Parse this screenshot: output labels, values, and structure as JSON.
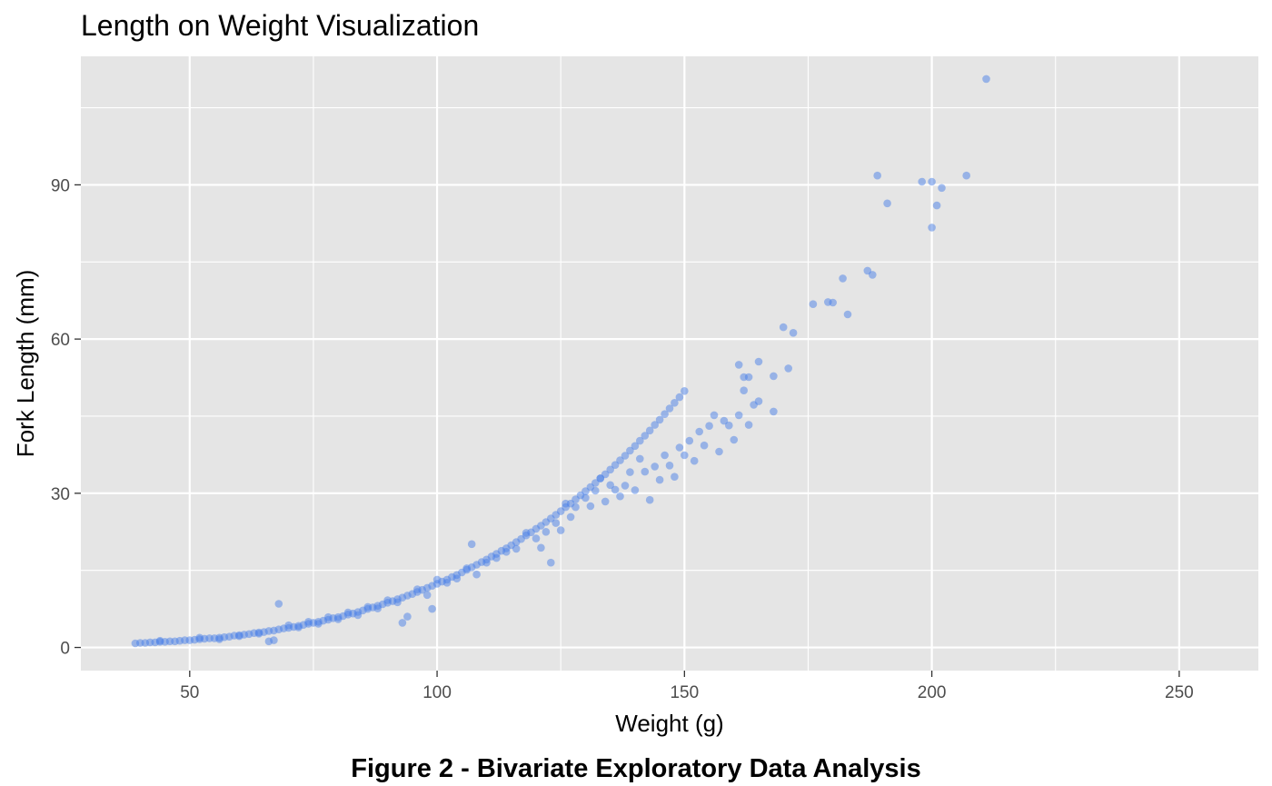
{
  "chart_data": {
    "type": "scatter",
    "title": "Length on Weight Visualization",
    "xlabel": "Weight (g)",
    "ylabel": "Fork Length (mm)",
    "caption": "Figure 2 - Bivariate Exploratory Data Analysis",
    "xlim": [
      28,
      266
    ],
    "ylim": [
      -4.5,
      115
    ],
    "x_ticks": [
      50,
      100,
      150,
      200,
      250
    ],
    "y_ticks": [
      0,
      30,
      60,
      90
    ],
    "x_tick_labels": [
      "50",
      "100",
      "150",
      "200",
      "250"
    ],
    "y_tick_labels": [
      "0",
      "30",
      "60",
      "90"
    ],
    "grid": true,
    "legend": "none",
    "colors": {
      "panel_background": "#e5e5e5",
      "grid_line": "#ffffff",
      "point": "#4a7fe8",
      "tick_label": "#4d4d4d",
      "tick_mark": "#333333"
    },
    "point_alpha": 0.5,
    "series": [
      {
        "points": [
          [
            39,
            0.8
          ],
          [
            40,
            0.9
          ],
          [
            41,
            0.9
          ],
          [
            42,
            1.0
          ],
          [
            43,
            1.0
          ],
          [
            44,
            1.1
          ],
          [
            45,
            1.1
          ],
          [
            46,
            1.2
          ],
          [
            47,
            1.2
          ],
          [
            48,
            1.3
          ],
          [
            49,
            1.4
          ],
          [
            50,
            1.4
          ],
          [
            51,
            1.5
          ],
          [
            52,
            1.6
          ],
          [
            53,
            1.7
          ],
          [
            54,
            1.8
          ],
          [
            55,
            1.8
          ],
          [
            56,
            1.9
          ],
          [
            57,
            2.0
          ],
          [
            58,
            2.1
          ],
          [
            59,
            2.3
          ],
          [
            60,
            2.4
          ],
          [
            61,
            2.5
          ],
          [
            62,
            2.6
          ],
          [
            63,
            2.8
          ],
          [
            64,
            2.9
          ],
          [
            65,
            3.0
          ],
          [
            66,
            3.2
          ],
          [
            67,
            3.3
          ],
          [
            68,
            3.5
          ],
          [
            69,
            3.7
          ],
          [
            70,
            3.8
          ],
          [
            71,
            4.0
          ],
          [
            72,
            4.2
          ],
          [
            73,
            4.4
          ],
          [
            74,
            4.6
          ],
          [
            75,
            4.8
          ],
          [
            76,
            5.0
          ],
          [
            77,
            5.2
          ],
          [
            78,
            5.4
          ],
          [
            79,
            5.7
          ],
          [
            80,
            5.9
          ],
          [
            81,
            6.1
          ],
          [
            82,
            6.4
          ],
          [
            83,
            6.6
          ],
          [
            84,
            6.9
          ],
          [
            85,
            7.2
          ],
          [
            86,
            7.5
          ],
          [
            87,
            7.8
          ],
          [
            88,
            8.1
          ],
          [
            89,
            8.4
          ],
          [
            90,
            8.7
          ],
          [
            91,
            9.0
          ],
          [
            92,
            9.4
          ],
          [
            93,
            9.7
          ],
          [
            94,
            10.1
          ],
          [
            95,
            10.4
          ],
          [
            96,
            10.8
          ],
          [
            97,
            11.2
          ],
          [
            98,
            11.6
          ],
          [
            99,
            12.0
          ],
          [
            100,
            12.4
          ],
          [
            101,
            12.8
          ],
          [
            102,
            13.2
          ],
          [
            103,
            13.7
          ],
          [
            104,
            14.1
          ],
          [
            105,
            14.6
          ],
          [
            106,
            15.1
          ],
          [
            107,
            15.6
          ],
          [
            108,
            16.1
          ],
          [
            109,
            16.6
          ],
          [
            110,
            17.1
          ],
          [
            111,
            17.7
          ],
          [
            112,
            18.2
          ],
          [
            113,
            18.8
          ],
          [
            114,
            19.3
          ],
          [
            115,
            19.9
          ],
          [
            116,
            20.5
          ],
          [
            117,
            21.1
          ],
          [
            118,
            21.8
          ],
          [
            119,
            22.4
          ],
          [
            120,
            23.1
          ],
          [
            121,
            23.7
          ],
          [
            122,
            24.4
          ],
          [
            123,
            25.1
          ],
          [
            124,
            25.8
          ],
          [
            125,
            26.5
          ],
          [
            126,
            27.3
          ],
          [
            127,
            28.0
          ],
          [
            128,
            28.8
          ],
          [
            129,
            29.6
          ],
          [
            130,
            30.4
          ],
          [
            131,
            31.2
          ],
          [
            132,
            32.0
          ],
          [
            133,
            32.9
          ],
          [
            134,
            33.7
          ],
          [
            135,
            34.6
          ],
          [
            136,
            35.5
          ],
          [
            137,
            36.4
          ],
          [
            138,
            37.3
          ],
          [
            139,
            38.3
          ],
          [
            140,
            39.2
          ],
          [
            141,
            40.2
          ],
          [
            142,
            41.2
          ],
          [
            143,
            42.2
          ],
          [
            144,
            43.3
          ],
          [
            145,
            44.3
          ],
          [
            146,
            45.4
          ],
          [
            147,
            46.5
          ],
          [
            148,
            47.6
          ],
          [
            149,
            48.7
          ],
          [
            150,
            49.9
          ],
          [
            44,
            1.3
          ],
          [
            52,
            1.9
          ],
          [
            56,
            1.6
          ],
          [
            60,
            2.2
          ],
          [
            64,
            2.7
          ],
          [
            66,
            1.2
          ],
          [
            67,
            1.4
          ],
          [
            68,
            8.5
          ],
          [
            70,
            4.3
          ],
          [
            72,
            3.9
          ],
          [
            74,
            5.0
          ],
          [
            76,
            4.6
          ],
          [
            78,
            5.9
          ],
          [
            80,
            5.5
          ],
          [
            82,
            6.8
          ],
          [
            84,
            6.3
          ],
          [
            86,
            7.9
          ],
          [
            88,
            7.6
          ],
          [
            90,
            9.2
          ],
          [
            92,
            8.8
          ],
          [
            93,
            4.8
          ],
          [
            94,
            6.0
          ],
          [
            96,
            11.3
          ],
          [
            98,
            10.2
          ],
          [
            99,
            7.5
          ],
          [
            100,
            13.2
          ],
          [
            102,
            12.6
          ],
          [
            104,
            13.4
          ],
          [
            106,
            15.4
          ],
          [
            107,
            20.1
          ],
          [
            108,
            14.2
          ],
          [
            110,
            16.5
          ],
          [
            112,
            17.4
          ],
          [
            114,
            18.6
          ],
          [
            116,
            19.2
          ],
          [
            118,
            22.3
          ],
          [
            120,
            21.2
          ],
          [
            121,
            19.4
          ],
          [
            122,
            22.5
          ],
          [
            123,
            16.5
          ],
          [
            124,
            24.2
          ],
          [
            125,
            22.8
          ],
          [
            126,
            28.0
          ],
          [
            127,
            25.4
          ],
          [
            128,
            27.3
          ],
          [
            130,
            29.1
          ],
          [
            131,
            27.5
          ],
          [
            132,
            30.5
          ],
          [
            133,
            32.9
          ],
          [
            134,
            28.4
          ],
          [
            135,
            31.6
          ],
          [
            136,
            30.7
          ],
          [
            137,
            29.4
          ],
          [
            138,
            31.5
          ],
          [
            139,
            34.1
          ],
          [
            140,
            30.6
          ],
          [
            141,
            36.7
          ],
          [
            142,
            34.2
          ],
          [
            143,
            28.7
          ],
          [
            144,
            35.2
          ],
          [
            145,
            32.6
          ],
          [
            146,
            37.4
          ],
          [
            147,
            35.4
          ],
          [
            148,
            33.2
          ],
          [
            149,
            38.9
          ],
          [
            150,
            37.4
          ],
          [
            151,
            40.2
          ],
          [
            152,
            36.3
          ],
          [
            153,
            42.0
          ],
          [
            154,
            39.3
          ],
          [
            155,
            43.1
          ],
          [
            156,
            45.2
          ],
          [
            157,
            38.1
          ],
          [
            158,
            44.1
          ],
          [
            159,
            43.2
          ],
          [
            160,
            40.4
          ],
          [
            161,
            55.0
          ],
          [
            161,
            45.2
          ],
          [
            162,
            50.0
          ],
          [
            162,
            52.6
          ],
          [
            163,
            52.6
          ],
          [
            163,
            43.3
          ],
          [
            164,
            47.2
          ],
          [
            165,
            55.6
          ],
          [
            165,
            47.9
          ],
          [
            168,
            45.9
          ],
          [
            168,
            52.8
          ],
          [
            170,
            62.3
          ],
          [
            171,
            54.3
          ],
          [
            172,
            61.2
          ],
          [
            176,
            66.8
          ],
          [
            179,
            67.2
          ],
          [
            180,
            67.1
          ],
          [
            182,
            71.8
          ],
          [
            183,
            64.8
          ],
          [
            187,
            73.3
          ],
          [
            188,
            72.5
          ],
          [
            189,
            91.8
          ],
          [
            191,
            86.4
          ],
          [
            198,
            90.6
          ],
          [
            200,
            90.6
          ],
          [
            200,
            81.7
          ],
          [
            201,
            86.0
          ],
          [
            202,
            89.4
          ],
          [
            207,
            91.8
          ],
          [
            211,
            110.6
          ]
        ]
      }
    ]
  }
}
